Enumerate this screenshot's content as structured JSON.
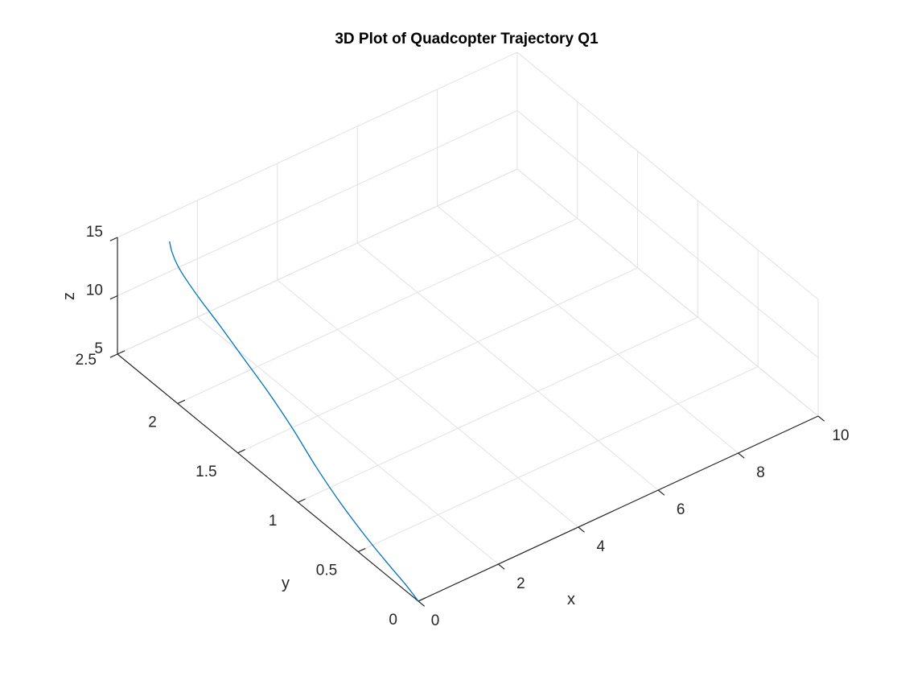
{
  "chart_data": {
    "type": "line",
    "projection": "3d",
    "title": "3D Plot of Quadcopter Trajectory Q1",
    "xlabel": "x",
    "ylabel": "y",
    "zlabel": "z",
    "xlim": [
      0,
      10
    ],
    "ylim": [
      0,
      2.5
    ],
    "zlim": [
      5,
      15
    ],
    "xticks": [
      0,
      2,
      4,
      6,
      8,
      10
    ],
    "yticks": [
      0,
      0.5,
      1,
      1.5,
      2,
      2.5
    ],
    "zticks": [
      5,
      10,
      15
    ],
    "xtick_labels": [
      "0",
      "2",
      "4",
      "6",
      "8",
      "10"
    ],
    "ytick_labels": [
      "0",
      "0.5",
      "1",
      "1.5",
      "2",
      "2.5"
    ],
    "ztick_labels": [
      "5",
      "10",
      "15"
    ],
    "grid": true,
    "series": [
      {
        "color": "#0072BD",
        "x": [
          0,
          0,
          0.01,
          0.05,
          0.15,
          0.3,
          0.48,
          0.62,
          0.72,
          0.76,
          0.74,
          0.68,
          0.6,
          0.52,
          0.46
        ],
        "y": [
          0,
          0.1,
          0.25,
          0.45,
          0.7,
          0.95,
          1.2,
          1.45,
          1.7,
          1.9,
          2.05,
          2.15,
          2.2,
          2.22,
          2.22
        ],
        "z": [
          5,
          5.5,
          6.0,
          6.6,
          7.3,
          8.0,
          8.8,
          9.6,
          10.4,
          11.3,
          12.2,
          13.2,
          14.2,
          15.3,
          16.3
        ]
      }
    ]
  },
  "colors": {
    "grid": "#e1e1e1",
    "axis": "#262626",
    "series": "#0072BD"
  }
}
